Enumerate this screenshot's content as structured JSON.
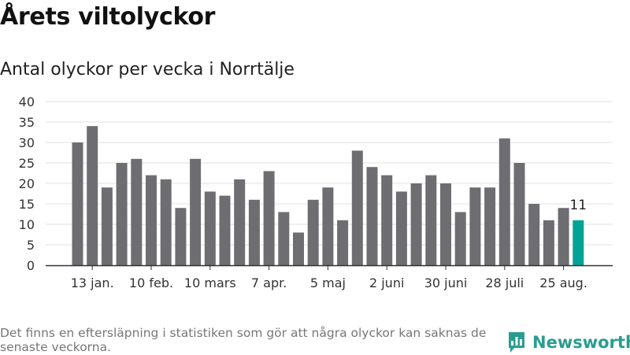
{
  "title": "Årets viltolyckor",
  "subtitle": "Antal olyckor per vecka i Norrtälje",
  "note": "Det finns en eftersläpning i statistiken som gör att några olyckor kan saknas de senaste veckorna.",
  "brand": {
    "name": "Newsworthy",
    "icon": "newsworthy-logo-icon",
    "color": "#2a9d8f"
  },
  "colors": {
    "bar": "#6e6d72",
    "highlight": "#00a396",
    "grid": "#e0e0e0",
    "axis": "#333333"
  },
  "chart_data": {
    "type": "bar",
    "title": "Antal olyckor per vecka i Norrtälje",
    "xlabel": "",
    "ylabel": "",
    "ylim": [
      0,
      40
    ],
    "yticks": [
      0,
      5,
      10,
      15,
      20,
      25,
      30,
      35,
      40
    ],
    "grid": true,
    "x_tick_labels": [
      {
        "label": "13 jan.",
        "bar_index": 1
      },
      {
        "label": "10 feb.",
        "bar_index": 5
      },
      {
        "label": "10 mars",
        "bar_index": 9
      },
      {
        "label": "7 apr.",
        "bar_index": 13
      },
      {
        "label": "5 maj",
        "bar_index": 17
      },
      {
        "label": "2 juni",
        "bar_index": 21
      },
      {
        "label": "30 juni",
        "bar_index": 25
      },
      {
        "label": "28 juli",
        "bar_index": 29
      },
      {
        "label": "25 aug.",
        "bar_index": 33
      }
    ],
    "values": [
      30,
      34,
      19,
      25,
      26,
      22,
      21,
      14,
      26,
      18,
      17,
      21,
      16,
      23,
      13,
      8,
      16,
      19,
      11,
      28,
      24,
      22,
      18,
      20,
      22,
      20,
      13,
      19,
      19,
      31,
      25,
      15,
      11,
      14,
      11
    ],
    "highlight_index": 34,
    "data_labels": [
      {
        "bar_index": 34,
        "text": "11"
      }
    ]
  }
}
